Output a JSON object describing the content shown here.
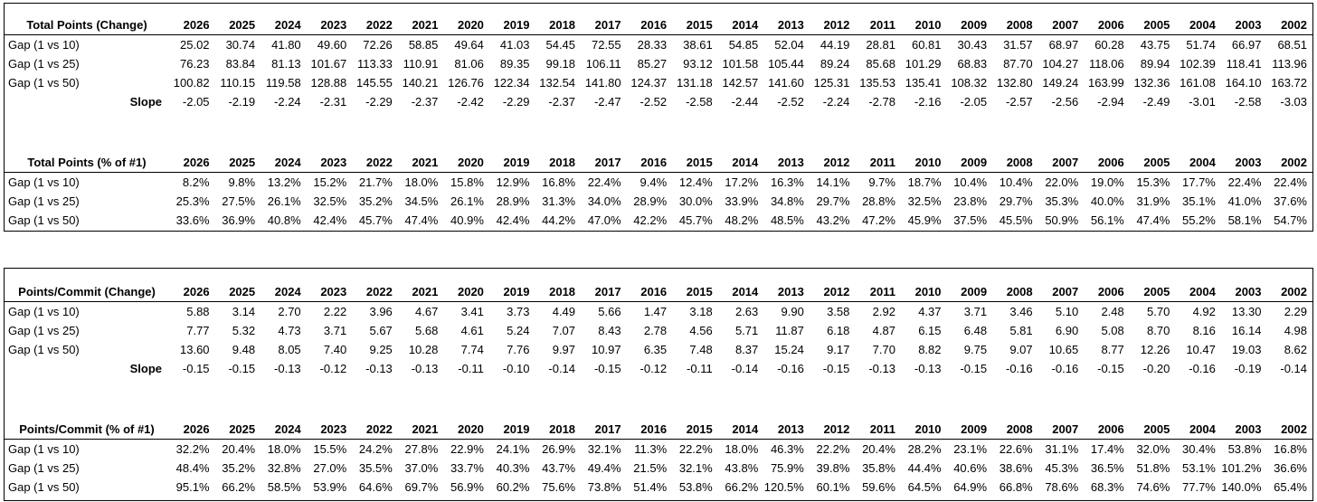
{
  "colors": {
    "background": "#ffffff",
    "text": "#000000",
    "border": "#000000"
  },
  "chart_data": {
    "type": "table",
    "columns": [
      "2026",
      "2025",
      "2024",
      "2023",
      "2022",
      "2021",
      "2020",
      "2019",
      "2018",
      "2017",
      "2016",
      "2015",
      "2014",
      "2013",
      "2012",
      "2011",
      "2010",
      "2009",
      "2008",
      "2007",
      "2006",
      "2005",
      "2004",
      "2003",
      "2002"
    ],
    "layout_blocks": [
      [
        0,
        1
      ],
      [
        2,
        3
      ]
    ],
    "tables": [
      {
        "title": "Total Points (Change)",
        "rows": [
          {
            "label": "Gap (1 vs 10)",
            "style": "normal",
            "values": [
              "25.02",
              "30.74",
              "41.80",
              "49.60",
              "72.26",
              "58.85",
              "49.64",
              "41.03",
              "54.45",
              "72.55",
              "28.33",
              "38.61",
              "54.85",
              "52.04",
              "44.19",
              "28.81",
              "60.81",
              "30.43",
              "31.57",
              "68.97",
              "60.28",
              "43.75",
              "51.74",
              "66.97",
              "68.51"
            ]
          },
          {
            "label": "Gap (1 vs 25)",
            "style": "normal",
            "values": [
              "76.23",
              "83.84",
              "81.13",
              "101.67",
              "113.33",
              "110.91",
              "81.06",
              "89.35",
              "99.18",
              "106.11",
              "85.27",
              "93.12",
              "101.58",
              "105.44",
              "89.24",
              "85.68",
              "101.29",
              "68.83",
              "87.70",
              "104.27",
              "118.06",
              "89.94",
              "102.39",
              "118.41",
              "113.96"
            ]
          },
          {
            "label": "Gap (1 vs 50)",
            "style": "normal",
            "values": [
              "100.82",
              "110.15",
              "119.58",
              "128.88",
              "145.55",
              "140.21",
              "126.76",
              "122.34",
              "132.54",
              "141.80",
              "124.37",
              "131.18",
              "142.57",
              "141.60",
              "125.31",
              "135.53",
              "135.41",
              "108.32",
              "132.80",
              "149.24",
              "163.99",
              "132.36",
              "161.08",
              "164.10",
              "163.72"
            ]
          },
          {
            "label": "Slope",
            "style": "slope",
            "values": [
              "-2.05",
              "-2.19",
              "-2.24",
              "-2.31",
              "-2.29",
              "-2.37",
              "-2.42",
              "-2.29",
              "-2.37",
              "-2.47",
              "-2.52",
              "-2.58",
              "-2.44",
              "-2.52",
              "-2.24",
              "-2.78",
              "-2.16",
              "-2.05",
              "-2.57",
              "-2.56",
              "-2.94",
              "-2.49",
              "-3.01",
              "-2.58",
              "-3.03"
            ]
          }
        ]
      },
      {
        "title": "Total Points (% of #1)",
        "rows": [
          {
            "label": "Gap (1 vs 10)",
            "style": "normal",
            "values": [
              "8.2%",
              "9.8%",
              "13.2%",
              "15.2%",
              "21.7%",
              "18.0%",
              "15.8%",
              "12.9%",
              "16.8%",
              "22.4%",
              "9.4%",
              "12.4%",
              "17.2%",
              "16.3%",
              "14.1%",
              "9.7%",
              "18.7%",
              "10.4%",
              "10.4%",
              "22.0%",
              "19.0%",
              "15.3%",
              "17.7%",
              "22.4%",
              "22.4%"
            ]
          },
          {
            "label": "Gap (1 vs 25)",
            "style": "normal",
            "values": [
              "25.3%",
              "27.5%",
              "26.1%",
              "32.5%",
              "35.2%",
              "34.5%",
              "26.1%",
              "28.9%",
              "31.3%",
              "34.0%",
              "28.9%",
              "30.0%",
              "33.9%",
              "34.8%",
              "29.7%",
              "28.8%",
              "32.5%",
              "23.8%",
              "29.7%",
              "35.3%",
              "40.0%",
              "31.9%",
              "35.1%",
              "41.0%",
              "37.6%"
            ]
          },
          {
            "label": "Gap (1 vs 50)",
            "style": "normal",
            "values": [
              "33.6%",
              "36.9%",
              "40.8%",
              "42.4%",
              "45.7%",
              "47.4%",
              "40.9%",
              "42.4%",
              "44.2%",
              "47.0%",
              "42.2%",
              "45.7%",
              "48.2%",
              "48.5%",
              "43.2%",
              "47.2%",
              "45.9%",
              "37.5%",
              "45.5%",
              "50.9%",
              "56.1%",
              "47.4%",
              "55.2%",
              "58.1%",
              "54.7%"
            ]
          }
        ]
      },
      {
        "title": "Points/Commit (Change)",
        "rows": [
          {
            "label": "Gap (1 vs 10)",
            "style": "normal",
            "values": [
              "5.88",
              "3.14",
              "2.70",
              "2.22",
              "3.96",
              "4.67",
              "3.41",
              "3.73",
              "4.49",
              "5.66",
              "1.47",
              "3.18",
              "2.63",
              "9.90",
              "3.58",
              "2.92",
              "4.37",
              "3.71",
              "3.46",
              "5.10",
              "2.48",
              "5.70",
              "4.92",
              "13.30",
              "2.29"
            ]
          },
          {
            "label": "Gap (1 vs 25)",
            "style": "normal",
            "values": [
              "7.77",
              "5.32",
              "4.73",
              "3.71",
              "5.67",
              "5.68",
              "4.61",
              "5.24",
              "7.07",
              "8.43",
              "2.78",
              "4.56",
              "5.71",
              "11.87",
              "6.18",
              "4.87",
              "6.15",
              "6.48",
              "5.81",
              "6.90",
              "5.08",
              "8.70",
              "8.16",
              "16.14",
              "4.98"
            ]
          },
          {
            "label": "Gap (1 vs 50)",
            "style": "normal",
            "values": [
              "13.60",
              "9.48",
              "8.05",
              "7.40",
              "9.25",
              "10.28",
              "7.74",
              "7.76",
              "9.97",
              "10.97",
              "6.35",
              "7.48",
              "8.37",
              "15.24",
              "9.17",
              "7.70",
              "8.82",
              "9.75",
              "9.07",
              "10.65",
              "8.77",
              "12.26",
              "10.47",
              "19.03",
              "8.62"
            ]
          },
          {
            "label": "Slope",
            "style": "slope",
            "values": [
              "-0.15",
              "-0.15",
              "-0.13",
              "-0.12",
              "-0.13",
              "-0.13",
              "-0.11",
              "-0.10",
              "-0.14",
              "-0.15",
              "-0.12",
              "-0.11",
              "-0.14",
              "-0.16",
              "-0.15",
              "-0.13",
              "-0.13",
              "-0.15",
              "-0.16",
              "-0.16",
              "-0.15",
              "-0.20",
              "-0.16",
              "-0.19",
              "-0.14"
            ]
          }
        ]
      },
      {
        "title": "Points/Commit (% of #1)",
        "rows": [
          {
            "label": "Gap (1 vs 10)",
            "style": "normal",
            "values": [
              "32.2%",
              "20.4%",
              "18.0%",
              "15.5%",
              "24.2%",
              "27.8%",
              "22.9%",
              "24.1%",
              "26.9%",
              "32.1%",
              "11.3%",
              "22.2%",
              "18.0%",
              "46.3%",
              "22.2%",
              "20.4%",
              "28.2%",
              "23.1%",
              "22.6%",
              "31.1%",
              "17.4%",
              "32.0%",
              "30.4%",
              "53.8%",
              "16.8%"
            ]
          },
          {
            "label": "Gap (1 vs 25)",
            "style": "normal",
            "values": [
              "48.4%",
              "35.2%",
              "32.8%",
              "27.0%",
              "35.5%",
              "37.0%",
              "33.7%",
              "40.3%",
              "43.7%",
              "49.4%",
              "21.5%",
              "32.1%",
              "43.8%",
              "75.9%",
              "39.8%",
              "35.8%",
              "44.4%",
              "40.6%",
              "38.6%",
              "45.3%",
              "36.5%",
              "51.8%",
              "53.1%",
              "101.2%",
              "36.6%"
            ]
          },
          {
            "label": "Gap (1 vs 50)",
            "style": "normal",
            "values": [
              "95.1%",
              "66.2%",
              "58.5%",
              "53.9%",
              "64.6%",
              "69.7%",
              "56.9%",
              "60.2%",
              "75.6%",
              "73.8%",
              "51.4%",
              "53.8%",
              "66.2%",
              "120.5%",
              "60.1%",
              "59.6%",
              "64.5%",
              "64.9%",
              "66.8%",
              "78.6%",
              "68.3%",
              "74.6%",
              "77.7%",
              "140.0%",
              "65.4%"
            ]
          }
        ]
      }
    ]
  }
}
